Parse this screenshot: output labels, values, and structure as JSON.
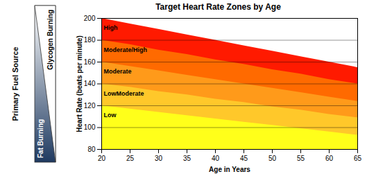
{
  "chart_data": {
    "type": "area",
    "title": "Target Heart Rate Zones by Age",
    "x_label": "Age in Years",
    "y_label": "Heart Rate (beats per minute)",
    "annotations": [
      "Primary Fuel Source",
      "Fat Burning",
      "Glycogen Burning"
    ],
    "x": [
      20,
      25,
      30,
      35,
      40,
      45,
      50,
      55,
      60,
      65
    ],
    "series": [
      {
        "name": "High",
        "color": "#ff1a00",
        "values": [
          200,
          195,
          190,
          185,
          180,
          175,
          170,
          165,
          160,
          155
        ]
      },
      {
        "name": "Moderate/High",
        "color": "#ff6a00",
        "values": [
          180,
          176,
          171,
          167,
          162,
          158,
          153,
          149,
          144,
          140
        ]
      },
      {
        "name": "Moderate",
        "color": "#ff9a1a",
        "values": [
          160,
          156,
          152,
          148,
          144,
          140,
          136,
          132,
          128,
          124
        ]
      },
      {
        "name": "LowModerate",
        "color": "#ffc82a",
        "values": [
          140,
          137,
          133,
          130,
          126,
          123,
          119,
          116,
          112,
          109
        ]
      },
      {
        "name": "Low",
        "color": "#ffff1a",
        "values": [
          120,
          117,
          114,
          111,
          108,
          105,
          102,
          99,
          96,
          93
        ]
      }
    ],
    "xlim": [
      20,
      65
    ],
    "xticks": [
      20,
      25,
      30,
      35,
      40,
      45,
      50,
      55,
      60,
      65
    ],
    "ylim": [
      80,
      200
    ],
    "yticks": [
      80,
      100,
      120,
      140,
      160,
      180,
      200
    ],
    "grid": true,
    "stacked": false
  }
}
